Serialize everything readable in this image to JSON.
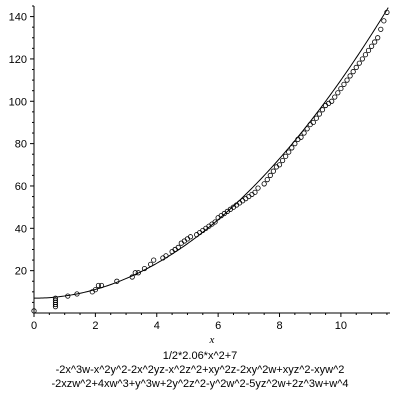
{
  "chart_data": {
    "type": "scatter",
    "title": "",
    "xlabel": "x",
    "ylabel": "",
    "xlim": [
      0,
      11.6
    ],
    "ylim": [
      0,
      145
    ],
    "x_ticks": [
      0,
      2,
      4,
      6,
      8,
      10
    ],
    "y_ticks": [
      20,
      40,
      60,
      80,
      100,
      120,
      140
    ],
    "grid": false,
    "legend": "none",
    "caption_lines": [
      "1/2*2.06*x^2+7",
      "-2x^3w-x^2y^2-2x^2yz-x^2z^2+xy^2z-2xy^2w+xyz^2-xyw^2",
      "-2xzw^2+4xw^3+y^3w+2y^2z^2-y^2w^2-5yz^2w+2z^3w+w^4"
    ],
    "series": [
      {
        "kind": "points",
        "marker": "open-circle",
        "x": [
          0.0,
          0.7,
          0.7,
          0.7,
          0.7,
          0.7,
          1.1,
          1.4,
          1.9,
          2.0,
          2.1,
          2.2,
          2.7,
          3.2,
          3.3,
          3.4,
          3.6,
          3.8,
          3.9,
          4.2,
          4.3,
          4.5,
          4.6,
          4.6,
          4.7,
          4.8,
          4.9,
          5.0,
          5.1,
          5.3,
          5.4,
          5.5,
          5.6,
          5.7,
          5.8,
          5.9,
          6.0,
          6.1,
          6.2,
          6.3,
          6.4,
          6.5,
          6.6,
          6.7,
          6.8,
          6.9,
          7.0,
          7.1,
          7.2,
          7.3,
          7.5,
          7.6,
          7.7,
          7.8,
          7.9,
          8.0,
          8.1,
          8.2,
          8.3,
          8.4,
          8.5,
          8.6,
          8.7,
          8.8,
          8.9,
          9.0,
          9.1,
          9.2,
          9.3,
          9.4,
          9.5,
          9.6,
          9.7,
          9.8,
          9.9,
          10.0,
          10.1,
          10.2,
          10.3,
          10.4,
          10.5,
          10.6,
          10.7,
          10.8,
          10.9,
          11.0,
          11.1,
          11.2,
          11.3,
          11.4,
          11.5
        ],
        "y": [
          1,
          3,
          4,
          5,
          6,
          7,
          8,
          9,
          10,
          11,
          13,
          13,
          15,
          17,
          19,
          19,
          21,
          23,
          25,
          26,
          27,
          29,
          30,
          30,
          31,
          33,
          34,
          35,
          36,
          37,
          38,
          39,
          40,
          41,
          42,
          43,
          45,
          46,
          47,
          48,
          49,
          50,
          51,
          52,
          53,
          54,
          55,
          56,
          57,
          59,
          61,
          63,
          65,
          67,
          69,
          70,
          72,
          74,
          76,
          78,
          80,
          82,
          83,
          85,
          87,
          89,
          90,
          92,
          94,
          96,
          98,
          99,
          100,
          102,
          104,
          106,
          108,
          110,
          112,
          114,
          116,
          118,
          120,
          122,
          124,
          126,
          128,
          130,
          134,
          138,
          142
        ]
      },
      {
        "kind": "curve",
        "formula": "1/2*2.06*x^2+7",
        "a": 1.03,
        "c": 7
      }
    ]
  }
}
